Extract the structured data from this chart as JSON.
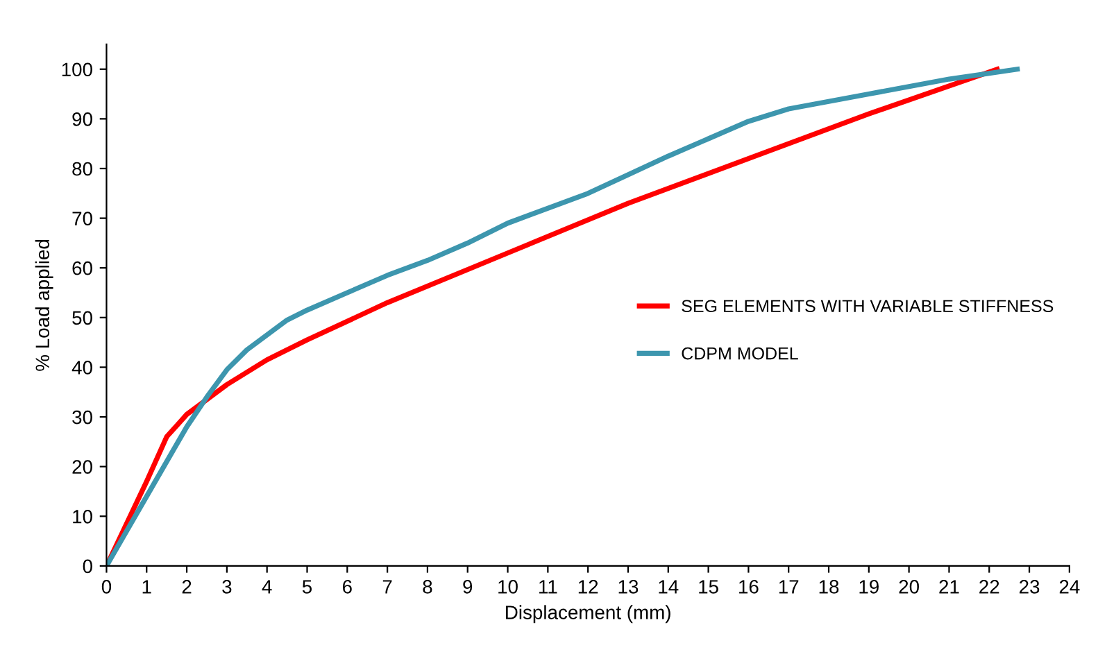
{
  "chart_data": {
    "type": "line",
    "xlabel": "Displacement (mm)",
    "ylabel": "% Load applied",
    "xlim": [
      0,
      24
    ],
    "ylim": [
      0,
      105
    ],
    "xticks": [
      0,
      1,
      2,
      3,
      4,
      5,
      6,
      7,
      8,
      9,
      10,
      11,
      12,
      13,
      14,
      15,
      16,
      17,
      18,
      19,
      20,
      21,
      22,
      23,
      24
    ],
    "yticks": [
      0,
      10,
      20,
      30,
      40,
      50,
      60,
      70,
      80,
      90,
      100
    ],
    "grid": false,
    "legend": "right",
    "marker": "none",
    "line_style": "solid",
    "series": [
      {
        "name": "SEG ELEMENTS WITH VARIABLE STIFFNESS",
        "color": "#ff0000",
        "x": [
          0,
          1,
          1.5,
          2,
          2.5,
          3,
          4,
          5,
          7,
          10,
          13,
          16,
          19,
          22.2
        ],
        "values": [
          0,
          17,
          26,
          30.5,
          33.5,
          36.5,
          41.5,
          45.5,
          53,
          63,
          73,
          82,
          91,
          100
        ]
      },
      {
        "name": "CDPM MODEL",
        "color": "#3d96ae",
        "x": [
          0,
          1,
          2,
          2.5,
          3,
          3.5,
          4,
          4.5,
          5,
          6,
          7,
          8,
          9,
          10,
          12,
          14,
          16,
          17,
          19,
          21,
          22.7
        ],
        "values": [
          0,
          14,
          28,
          34,
          39.5,
          43.5,
          46.5,
          49.5,
          51.5,
          55,
          58.5,
          61.5,
          65,
          69,
          75,
          82.5,
          89.5,
          92,
          95,
          98,
          100
        ]
      }
    ]
  }
}
